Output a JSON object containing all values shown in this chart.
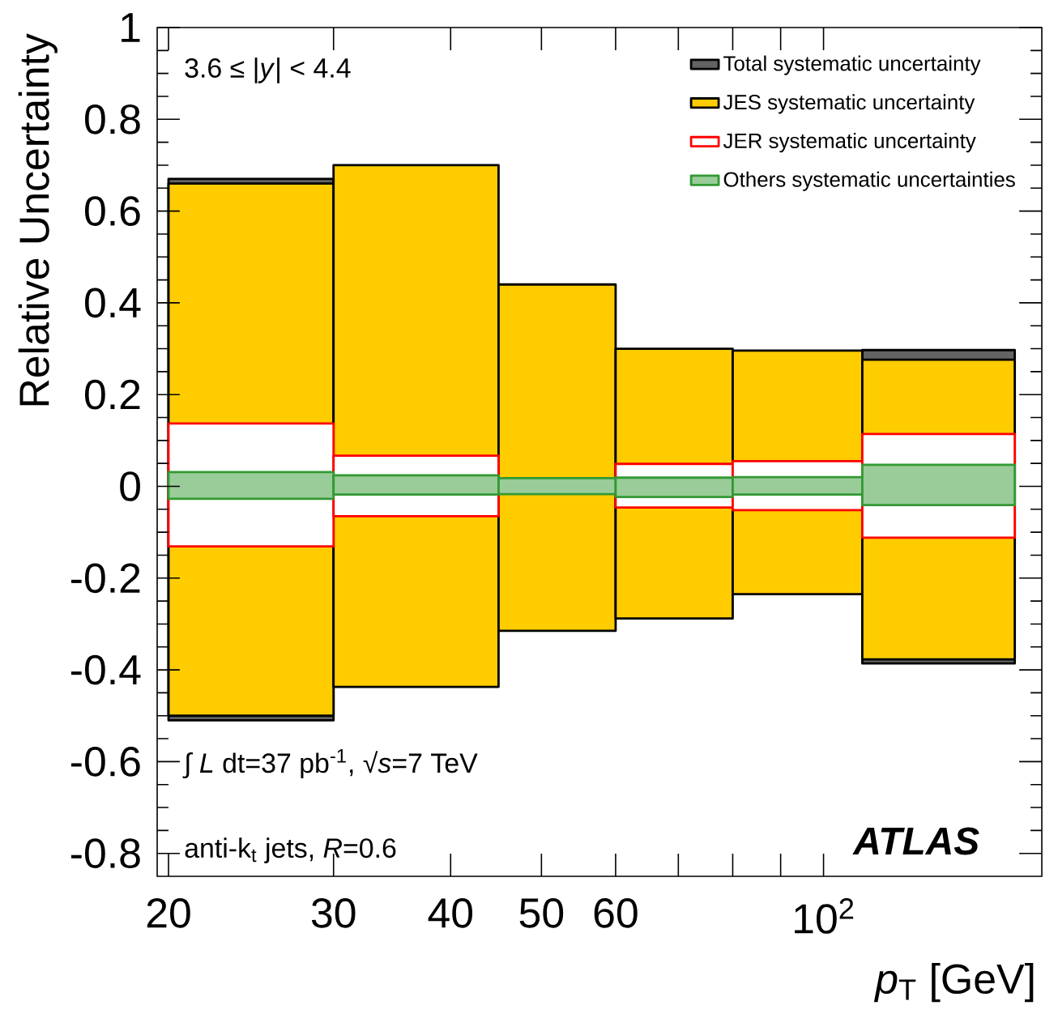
{
  "chart_data": {
    "type": "histogram",
    "xlabel": "*p*$_{T}$ [GeV]",
    "ylabel": "Relative Uncertainty",
    "bins": [
      20,
      30,
      45,
      60,
      80,
      110,
      160
    ],
    "series": [
      {
        "name": "Total systematic uncertainty",
        "color": "#636363",
        "values": [
          1.18,
          null,
          null,
          null,
          null,
          0.683
        ],
        "base": [
          -0.51,
          null,
          null,
          null,
          null,
          -0.386
        ]
      },
      {
        "name": "JES systematic uncertainty",
        "color": "#ffcc00",
        "values": [
          1.16,
          1.137,
          0.755,
          0.588,
          0.531,
          0.653
        ],
        "base": [
          -0.5,
          -0.437,
          -0.315,
          -0.288,
          -0.235,
          -0.377
        ]
      },
      {
        "name": "JER systematic uncertainty",
        "color": "#ff0000",
        "values": [
          0.268,
          0.132,
          null,
          0.095,
          0.107,
          0.226
        ],
        "base": [
          -0.131,
          -0.065,
          null,
          -0.046,
          -0.052,
          -0.112
        ]
      },
      {
        "name": "Others systematic uncertainties",
        "color": "#99cc99",
        "values": [
          0.058,
          0.042,
          0.035,
          0.042,
          0.038,
          0.088
        ],
        "base": [
          -0.027,
          -0.018,
          -0.017,
          -0.023,
          -0.018,
          -0.041
        ]
      }
    ],
    "log": "x",
    "xlim": [
      19.45,
      171
    ],
    "ylim": [
      -0.85,
      1
    ],
    "xticks": [
      20,
      30,
      40,
      50,
      60,
      {
        "value": 70,
        "label": null
      },
      {
        "value": 80,
        "label": null
      },
      {
        "value": 90,
        "label": null
      },
      {
        "value": 100,
        "label": "10$^{2}$"
      }
    ],
    "yticks": [
      -0.8,
      -0.6,
      -0.4,
      -0.2,
      0,
      0.2,
      0.4,
      0.6,
      0.8,
      1
    ],
    "legend": "top right",
    "annotations": [
      "3.6 ≤ |*y*| < 4.4",
      "∫ *L* dt=37 pb$^{-1}$,   √*s*=7 TeV",
      "anti-k$_{t}$  jets,  *R*=0.6",
      "ATLAS"
    ]
  }
}
